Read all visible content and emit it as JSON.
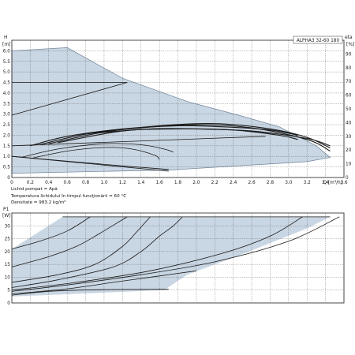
{
  "chart_data": [
    {
      "type": "line",
      "model": "ALPHA3 32-60 180",
      "xlabel": "Q [m³/h]",
      "ylabel_left": "H\n[m]",
      "ylabel_right": "eta\n[%]",
      "x_range": [
        0,
        3.6
      ],
      "y_range": [
        0,
        6.5
      ],
      "y2_range": [
        0,
        100
      ],
      "x_ticks": [
        "0",
        "0.2",
        "0.4",
        "0.6",
        "0.8",
        "1.0",
        "1.2",
        "1.4",
        "1.6",
        "1.8",
        "2.0",
        "2.2",
        "2.4",
        "2.6",
        "2.8",
        "3.0",
        "3.2",
        "3.4",
        "3.6"
      ],
      "y_ticks": [
        "0",
        "0.5",
        "1.0",
        "1.5",
        "2.0",
        "2.5",
        "3.0",
        "3.5",
        "4.0",
        "4.5",
        "5.0",
        "5.5",
        "6.0"
      ],
      "y2_ticks": [
        "0",
        "10",
        "20",
        "30",
        "40",
        "50",
        "60",
        "70",
        "80",
        "90"
      ],
      "grid": true,
      "operating_area": [
        [
          0,
          1.1
        ],
        [
          0,
          6.0
        ],
        [
          0.6,
          6.15
        ],
        [
          1.2,
          4.7
        ],
        [
          1.9,
          3.6
        ],
        [
          2.5,
          2.9
        ],
        [
          2.9,
          2.4
        ],
        [
          3.3,
          1.5
        ],
        [
          3.45,
          0.95
        ],
        [
          3.2,
          0.75
        ],
        [
          1.7,
          0.35
        ],
        [
          1.1,
          0.3
        ],
        [
          0,
          0.2
        ]
      ],
      "series": [
        {
          "values": [
            [
              0,
              4.5
            ],
            [
              1.25,
              4.5
            ]
          ]
        },
        {
          "values": [
            [
              0,
              2.95
            ],
            [
              1.25,
              4.5
            ]
          ]
        },
        {
          "values": [
            [
              0,
              1.5
            ],
            [
              2.75,
              1.95
            ]
          ]
        },
        {
          "values": [
            [
              0,
              1.0
            ],
            [
              1.7,
              0.3
            ]
          ]
        },
        {
          "values": [
            [
              0,
              1.0
            ],
            [
              1.2,
              0.55
            ],
            [
              1.7,
              0.38
            ]
          ]
        },
        {
          "values": [
            [
              0.1,
              0.95
            ],
            [
              0.5,
              1.35
            ],
            [
              1.0,
              1.6
            ],
            [
              1.4,
              1.55
            ],
            [
              1.65,
              1.35
            ],
            [
              1.75,
              1.2
            ]
          ]
        },
        {
          "values": [
            [
              0.2,
              0.9
            ],
            [
              0.6,
              1.25
            ],
            [
              1.0,
              1.42
            ],
            [
              1.3,
              1.35
            ],
            [
              1.55,
              1.05
            ],
            [
              1.6,
              0.85
            ]
          ]
        },
        {
          "values": [
            [
              0.2,
              1.5
            ],
            [
              0.6,
              1.95
            ],
            [
              1.2,
              2.3
            ],
            [
              1.8,
              2.45
            ],
            [
              2.3,
              2.4
            ],
            [
              2.8,
              2.25
            ],
            [
              3.1,
              2.0
            ]
          ]
        },
        {
          "values": [
            [
              0.3,
              1.55
            ],
            [
              0.8,
              2.05
            ],
            [
              1.4,
              2.35
            ],
            [
              2.0,
              2.5
            ],
            [
              2.6,
              2.35
            ],
            [
              3.2,
              1.8
            ],
            [
              3.45,
              1.25
            ]
          ]
        },
        {
          "values": [
            [
              0.4,
              1.6
            ],
            [
              1.0,
              2.15
            ],
            [
              1.6,
              2.45
            ],
            [
              2.2,
              2.55
            ],
            [
              2.8,
              2.3
            ],
            [
              3.2,
              1.9
            ],
            [
              3.45,
              1.4
            ]
          ]
        },
        {
          "values": [
            [
              0.5,
              1.65
            ],
            [
              1.2,
              2.2
            ],
            [
              1.8,
              2.3
            ],
            [
              2.4,
              2.25
            ],
            [
              2.9,
              2.0
            ],
            [
              3.1,
              1.8
            ]
          ]
        },
        {
          "values": [
            [
              0.9,
              2.1
            ],
            [
              1.5,
              2.3
            ],
            [
              2.0,
              2.3
            ],
            [
              2.6,
              2.2
            ],
            [
              3.2,
              1.85
            ],
            [
              3.45,
              1.5
            ]
          ]
        }
      ]
    },
    {
      "type": "line",
      "ylabel": "P1\n[W]",
      "x_range": [
        0,
        3.6
      ],
      "y_range": [
        0,
        35
      ],
      "y_ticks": [
        "0",
        "5",
        "10",
        "15",
        "20",
        "25",
        "30"
      ],
      "grid": true,
      "operating_area": [
        [
          0,
          2.5
        ],
        [
          0,
          21
        ],
        [
          0.55,
          33.5
        ],
        [
          3.45,
          33.5
        ],
        [
          3.2,
          29
        ],
        [
          2.5,
          19
        ],
        [
          1.9,
          11
        ],
        [
          1.65,
          5
        ],
        [
          0,
          2.5
        ]
      ],
      "series": [
        {
          "values": [
            [
              0,
              3
            ],
            [
              0.4,
              4.5
            ],
            [
              1.0,
              5.2
            ],
            [
              1.7,
              5.3
            ]
          ]
        },
        {
          "values": [
            [
              0,
              3.5
            ],
            [
              0.6,
              5.5
            ],
            [
              1.1,
              8
            ],
            [
              1.6,
              10.5
            ],
            [
              2.0,
              12.5
            ]
          ]
        },
        {
          "values": [
            [
              0,
              6
            ],
            [
              0.5,
              9
            ],
            [
              1.1,
              14
            ],
            [
              1.4,
              20
            ],
            [
              1.6,
              26
            ],
            [
              1.75,
              30
            ],
            [
              1.85,
              33.5
            ]
          ]
        },
        {
          "values": [
            [
              0,
              8
            ],
            [
              0.5,
              11
            ],
            [
              0.9,
              15
            ],
            [
              1.2,
              22
            ],
            [
              1.35,
              27.5
            ],
            [
              1.5,
              33.5
            ]
          ]
        },
        {
          "values": [
            [
              0,
              14
            ],
            [
              0.4,
              18
            ],
            [
              0.7,
              22
            ],
            [
              0.95,
              27
            ],
            [
              1.25,
              33.5
            ]
          ]
        },
        {
          "values": [
            [
              0,
              21
            ],
            [
              0.3,
              24
            ],
            [
              0.6,
              28
            ],
            [
              0.85,
              33.5
            ]
          ]
        },
        {
          "values": [
            [
              0,
              4.5
            ],
            [
              0.6,
              7
            ],
            [
              1.4,
              11
            ],
            [
              2.2,
              16
            ],
            [
              3.0,
              24
            ],
            [
              3.55,
              33.5
            ]
          ]
        },
        {
          "values": [
            [
              0,
              5
            ],
            [
              0.7,
              8
            ],
            [
              1.5,
              12.5
            ],
            [
              2.3,
              19.5
            ],
            [
              2.8,
              26
            ],
            [
              3.15,
              33.5
            ]
          ]
        }
      ]
    }
  ],
  "notes": {
    "line1": "Lichid pompat = Apă",
    "line2": "Temperatura lichidului în timpul funcţionării = 60 °C",
    "line3": "Densitate = 983.2 kg/m³"
  }
}
